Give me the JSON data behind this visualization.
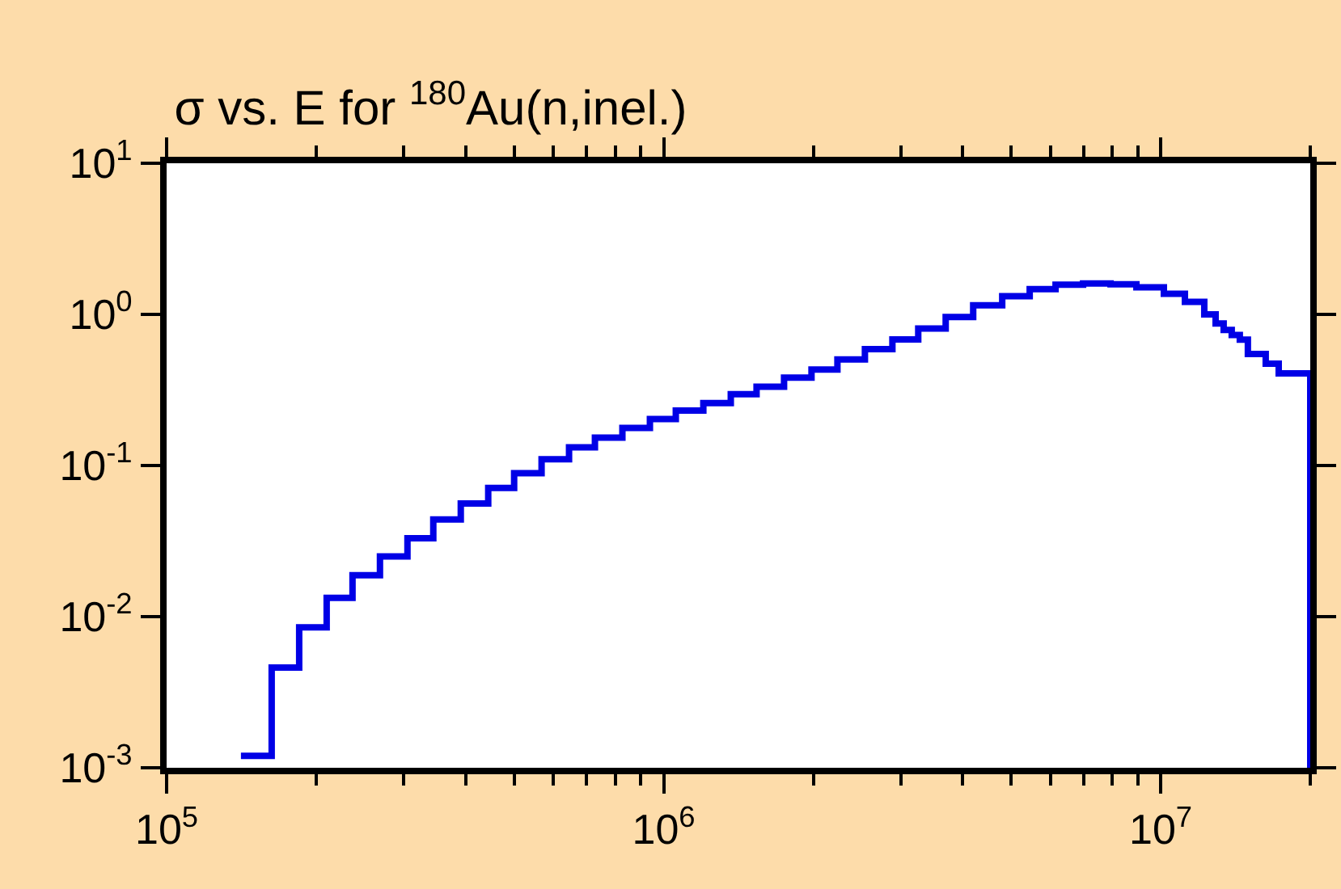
{
  "chart_data": {
    "type": "step",
    "title": "σ vs. E for $^{180}$Au(n,inel.)",
    "x": [
      141100,
      162700,
      184800,
      209900,
      236600,
      268700,
      305200,
      344000,
      390700,
      443700,
      500300,
      568100,
      645200,
      727400,
      826100,
      938400,
      1058000,
      1202000,
      1365000,
      1538000,
      1747000,
      1984000,
      2237000,
      2541000,
      2886000,
      3253000,
      3694000,
      4196000,
      4800000,
      5452000,
      6146000,
      6981000,
      7930000,
      8938000,
      10150000,
      11190000,
      12240000,
      12900000,
      13390000,
      13900000,
      14430000,
      14980000,
      16270000,
      17280000,
      20000000
    ],
    "series": [
      {
        "color": "#0000e6",
        "values": [
          0.0012,
          0.0046,
          0.0085,
          0.0133,
          0.0188,
          0.025,
          0.033,
          0.044,
          0.056,
          0.071,
          0.089,
          0.11,
          0.132,
          0.153,
          0.177,
          0.203,
          0.231,
          0.259,
          0.296,
          0.332,
          0.381,
          0.431,
          0.504,
          0.589,
          0.683,
          0.805,
          0.96,
          1.15,
          1.32,
          1.47,
          1.57,
          1.6,
          1.58,
          1.51,
          1.37,
          1.21,
          1.0,
          0.87,
          0.79,
          0.73,
          0.68,
          0.547,
          0.472,
          0.407,
          0.001
        ]
      }
    ],
    "log": "xy",
    "grid": false,
    "marker": "none",
    "line_style": "solid",
    "xlim": [
      100000,
      20000000
    ],
    "xticks": [
      {
        "value": 100000,
        "label": "10$^{5}$"
      },
      {
        "value": 200000,
        "label": null
      },
      {
        "value": 300000,
        "label": null
      },
      {
        "value": 400000,
        "label": null
      },
      {
        "value": 500000,
        "label": null
      },
      {
        "value": 600000,
        "label": null
      },
      {
        "value": 700000,
        "label": null
      },
      {
        "value": 800000,
        "label": null
      },
      {
        "value": 900000,
        "label": null
      },
      {
        "value": 1000000,
        "label": "10$^{6}$"
      },
      {
        "value": 2000000,
        "label": null
      },
      {
        "value": 3000000,
        "label": null
      },
      {
        "value": 4000000,
        "label": null
      },
      {
        "value": 5000000,
        "label": null
      },
      {
        "value": 6000000,
        "label": null
      },
      {
        "value": 7000000,
        "label": null
      },
      {
        "value": 8000000,
        "label": null
      },
      {
        "value": 9000000,
        "label": null
      },
      {
        "value": 10000000,
        "label": "10$^{7}$"
      },
      {
        "value": 20000000,
        "label": null
      }
    ],
    "ylim": [
      0.001,
      10
    ],
    "yticks": [
      {
        "value": 0.001,
        "label": "10$^{-3}$"
      },
      {
        "value": 0.01,
        "label": "10$^{-2}$"
      },
      {
        "value": 0.1,
        "label": "10$^{-1}$"
      },
      {
        "value": 1,
        "label": "10$^{0}$"
      },
      {
        "value": 10,
        "label": "10$^{1}$"
      }
    ]
  }
}
